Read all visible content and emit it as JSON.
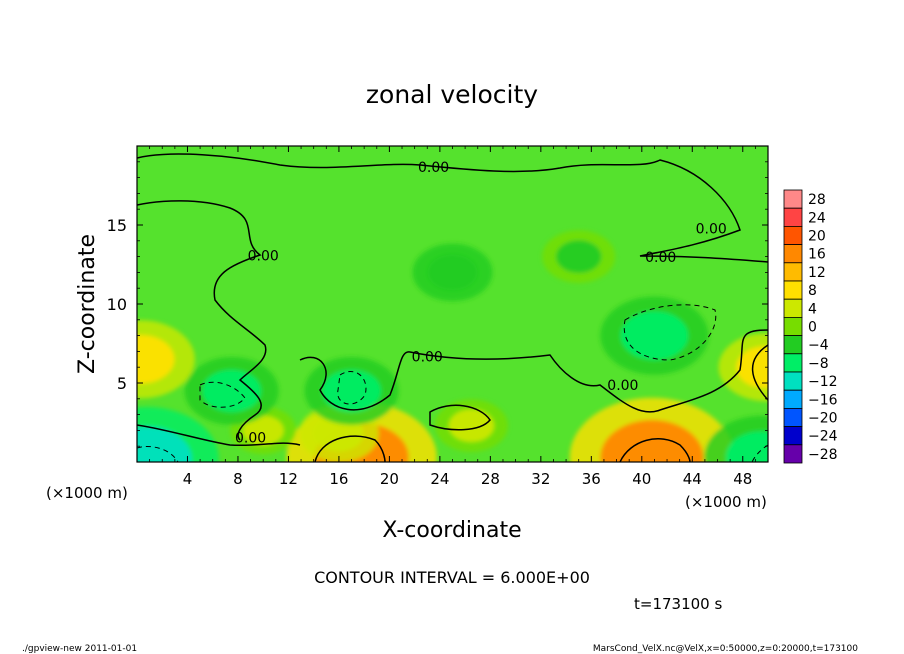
{
  "chart_data": {
    "type": "heatmap",
    "title": "zonal velocity",
    "xlabel": "X-coordinate",
    "ylabel": "Z-coordinate",
    "x_unit_left": "(×1000 m)",
    "x_unit_right": "(×1000 m)",
    "xlim": [
      0,
      50
    ],
    "ylim": [
      0,
      20
    ],
    "x_ticks": [
      "4",
      "8",
      "12",
      "16",
      "20",
      "24",
      "28",
      "32",
      "36",
      "40",
      "44",
      "48"
    ],
    "y_ticks": [
      "5",
      "10",
      "15"
    ],
    "contour_interval_text": "CONTOUR INTERVAL = 6.000E+00",
    "time_text": "t=173100 s",
    "contour_labels": [
      {
        "text": "0.00",
        "x": 23.5,
        "z": 18.6
      },
      {
        "text": "0.00",
        "x": 10.0,
        "z": 13.0
      },
      {
        "text": "0.00",
        "x": 41.5,
        "z": 12.9
      },
      {
        "text": "0.00",
        "x": 45.5,
        "z": 14.7
      },
      {
        "text": "0.00",
        "x": 23.0,
        "z": 6.6
      },
      {
        "text": "0.00",
        "x": 38.5,
        "z": 4.8
      },
      {
        "text": "0.00",
        "x": 9.0,
        "z": 1.5
      }
    ],
    "colorbar": {
      "labels": [
        "28",
        "24",
        "20",
        "16",
        "12",
        "8",
        "4",
        "0",
        "−4",
        "−8",
        "−12",
        "−16",
        "−20",
        "−24",
        "−28"
      ],
      "colors": [
        "#ff8888",
        "#ff4444",
        "#ff5500",
        "#ff8800",
        "#ffbb00",
        "#ffe000",
        "#cce800",
        "#77dd00",
        "#22cc22",
        "#00ee66",
        "#00e0c0",
        "#00aaff",
        "#0055ff",
        "#0000cc",
        "#6600aa"
      ]
    },
    "field_features": [
      {
        "x": 40.8,
        "z": 0.3,
        "value": 17
      },
      {
        "x": 17.8,
        "z": 0.3,
        "value": 15
      },
      {
        "x": 0.3,
        "z": 6.5,
        "value": 9
      },
      {
        "x": 49.8,
        "z": 6.0,
        "value": 7
      },
      {
        "x": 16.0,
        "z": 1.8,
        "value": 5
      },
      {
        "x": 26.5,
        "z": 2.3,
        "value": 4
      },
      {
        "x": 10.0,
        "z": 2.0,
        "value": 3
      },
      {
        "x": 0.8,
        "z": 0.2,
        "value": -14
      },
      {
        "x": 49.5,
        "z": 0.3,
        "value": -10
      },
      {
        "x": 41.0,
        "z": 8.0,
        "value": -9
      },
      {
        "x": 17.0,
        "z": 4.5,
        "value": -7
      },
      {
        "x": 7.5,
        "z": 4.5,
        "value": -7
      },
      {
        "x": 25.0,
        "z": 12.0,
        "value": -5
      },
      {
        "x": 35.0,
        "z": 13.0,
        "value": -4
      }
    ]
  },
  "footer": {
    "left": "./gpview-new   2011-01-01",
    "right": "MarsCond_VelX.nc@VelX,x=0:50000,z=0:20000,t=173100"
  }
}
